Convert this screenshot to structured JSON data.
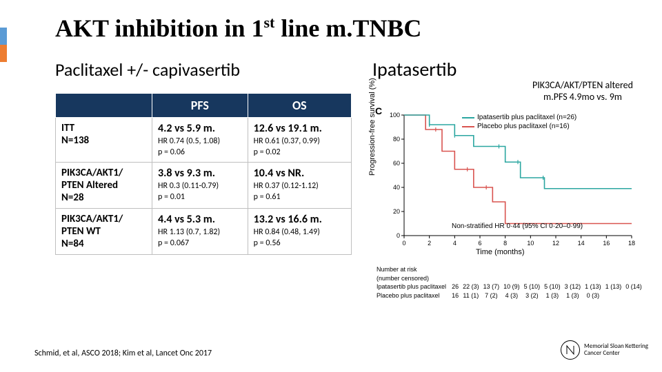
{
  "title_parts": {
    "pre": "AKT inhibition in 1",
    "sup": "st",
    "post": " line m.TNBC"
  },
  "subtitle_left": "Paclitaxel +/- capivasertib",
  "subtitle_right": "Ipatasertib",
  "pik3_note_line1": "PIK3CA/AKT/PTEN altered",
  "pik3_note_line2": "m.PFS 4.9mo vs. 9m",
  "table": {
    "headers": [
      "",
      "PFS",
      "OS"
    ],
    "rows": [
      {
        "label_line1": "ITT",
        "label_line2": "N=138",
        "pfs_main": "4.2 vs 5.9 m.",
        "pfs_sub1": "HR 0.74 (0.5, 1.08)",
        "pfs_sub2": "p = 0.06",
        "os_main": "12.6 vs 19.1 m.",
        "os_sub1": "HR 0.61 (0.37, 0.99)",
        "os_sub2": "p = 0.02"
      },
      {
        "label_line1": "PIK3CA/AKT1/",
        "label_line2": "PTEN Altered",
        "label_line3": "N=28",
        "pfs_main": "3.8 vs 9.3 m.",
        "pfs_sub1": "HR 0.3 (0.11-0.79)",
        "pfs_sub2": "p = 0.01",
        "os_main": "10.4 vs NR.",
        "os_sub1": "HR 0.37 (0.12-1.12)",
        "os_sub2": "p = 0.61"
      },
      {
        "label_line1": "PIK3CA/AKT1/",
        "label_line2": "PTEN WT",
        "label_line3": "N=84",
        "pfs_main": "4.4 vs 5.3 m.",
        "pfs_sub1": "HR 1.13 (0.7, 1.82)",
        "pfs_sub2": "p = 0.067",
        "os_main": "13.2 vs 16.6 m.",
        "os_sub1": "HR 0.84 (0.48, 1.49)",
        "os_sub2": "p = 0.56"
      }
    ]
  },
  "citation": "Schmid, et al, ASCO 2018; Kim et al, Lancet Onc 2017",
  "logo_text_line1": "Memorial Sloan Kettering",
  "logo_text_line2": "Cancer Center",
  "km": {
    "type": "kaplan-meier",
    "panel_label": "C",
    "ylabel": "Progression-free survival (%)",
    "xlabel": "Time (months)",
    "xlim": [
      0,
      18
    ],
    "xtick_step": 2,
    "ylim": [
      0,
      100
    ],
    "ytick_step": 20,
    "hr_text": "Non-stratified HR 0·44 (95% CI 0·20–0·99)",
    "legend": [
      {
        "label": "Ipatasertib plus paclitaxel (n=26)",
        "color": "#2aa6a0"
      },
      {
        "label": "Placebo plus paclitaxel (n=16)",
        "color": "#d9534f"
      }
    ],
    "colors": {
      "ipa": "#2aa6a0",
      "placebo": "#d9534f",
      "grid": "#cccccc",
      "axis": "#000000"
    },
    "series": {
      "ipa": {
        "x": [
          0,
          1.5,
          2.0,
          3.5,
          4.0,
          5.2,
          5.5,
          7.5,
          8.0,
          9.0,
          9.2,
          11.0,
          11.1,
          18.0
        ],
        "y": [
          100,
          100,
          92,
          92,
          83,
          83,
          74,
          74,
          61,
          61,
          48,
          48,
          39,
          39
        ]
      },
      "placebo": {
        "x": [
          0,
          1.5,
          1.7,
          2.5,
          3.0,
          3.6,
          4.0,
          5.0,
          5.5,
          6.5,
          7.0,
          7.5,
          8.0,
          18.0
        ],
        "y": [
          100,
          100,
          88,
          88,
          70,
          70,
          55,
          55,
          40,
          40,
          28,
          28,
          10,
          10
        ]
      }
    },
    "risk_header1": "Number at risk",
    "risk_header2": "(number censored)",
    "risk_labels": [
      "Ipatasertib plus paclitaxel",
      "Placebo plus paclitaxel"
    ],
    "risk_rows": [
      [
        "26",
        "22 (3)",
        "13 (7)",
        "10 (9)",
        "5 (10)",
        "5 (10)",
        "3 (12)",
        "1 (13)",
        "1 (13)",
        "0 (14)"
      ],
      [
        "16",
        "11 (1)",
        "7 (2)",
        "4 (3)",
        "3 (2)",
        "1 (3)",
        "1 (3)",
        "0 (3)",
        "",
        ""
      ]
    ]
  }
}
